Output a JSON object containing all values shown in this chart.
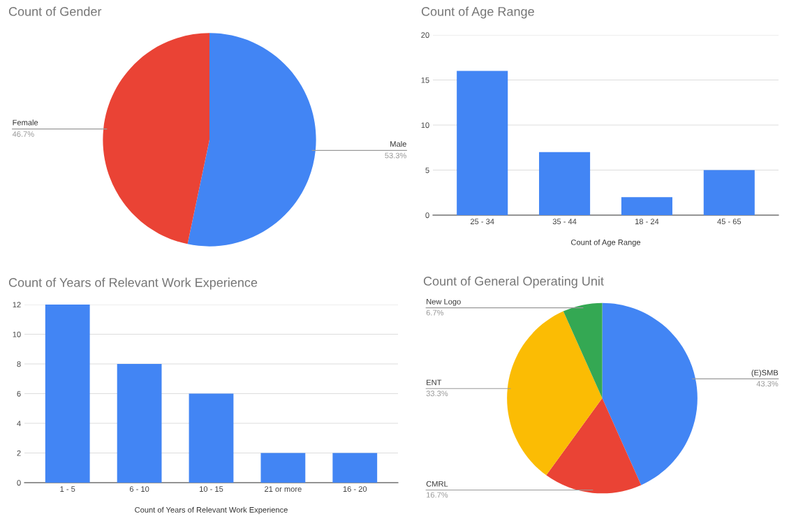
{
  "chart_data": [
    {
      "type": "pie",
      "title": "Count of Gender",
      "categories": [
        "Male",
        "Female"
      ],
      "values": [
        53.3,
        46.7
      ],
      "colors": [
        "#4285f4",
        "#ea4335"
      ],
      "value_labels": [
        "53.3%",
        "46.7%"
      ]
    },
    {
      "type": "bar",
      "title": "Count of Age Range",
      "xlabel": "Count of Age Range",
      "categories": [
        "25 - 34",
        "35 - 44",
        "18 - 24",
        "45 - 65"
      ],
      "values": [
        16,
        7,
        2,
        5
      ],
      "color": "#4285f4",
      "ylim": [
        0,
        20
      ],
      "yticks": [
        0,
        5,
        10,
        15,
        20
      ],
      "grid": "y"
    },
    {
      "type": "bar",
      "title": "Count of Years of Relevant Work Experience",
      "xlabel": "Count of Years of Relevant Work Experience",
      "categories": [
        "1 - 5",
        "6 - 10",
        "10 - 15",
        "21 or more",
        "16 - 20"
      ],
      "values": [
        12,
        8,
        6,
        2,
        2
      ],
      "color": "#4285f4",
      "ylim": [
        0,
        12
      ],
      "yticks": [
        0,
        2,
        4,
        6,
        8,
        10,
        12
      ],
      "grid": "y"
    },
    {
      "type": "pie",
      "title": "Count of General Operating Unit",
      "categories": [
        "(E)SMB",
        "CMRL",
        "ENT",
        "New Logo"
      ],
      "values": [
        43.3,
        16.7,
        33.3,
        6.7
      ],
      "colors": [
        "#4285f4",
        "#ea4335",
        "#fbbc04",
        "#34a853"
      ],
      "value_labels": [
        "43.3%",
        "16.7%",
        "33.3%",
        "6.7%"
      ]
    }
  ]
}
